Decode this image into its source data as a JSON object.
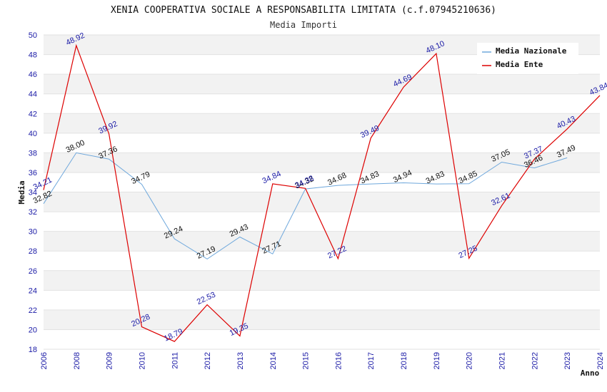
{
  "chart_data": {
    "type": "line",
    "title": "XENIA COOPERATIVA SOCIALE A RESPONSABILITA LIMITATA (c.f.07945210636)",
    "subtitle": "Media Importi",
    "xlabel": "Anno",
    "ylabel": "Media",
    "ylim": [
      18,
      50
    ],
    "yticks": [
      "18",
      "20",
      "22",
      "24",
      "26",
      "28",
      "30",
      "32",
      "34",
      "36",
      "38",
      "40",
      "42",
      "44",
      "46",
      "48",
      "50"
    ],
    "categories": [
      "2006",
      "2008",
      "2009",
      "2010",
      "2011",
      "2012",
      "2013",
      "2014",
      "2015",
      "2016",
      "2017",
      "2018",
      "2019",
      "2020",
      "2021",
      "2022",
      "2023",
      "2024"
    ],
    "legend_position": "top-right",
    "series": [
      {
        "name": "Media Nazionale",
        "color": "#6fa8dc",
        "values": [
          32.82,
          38.0,
          37.36,
          34.79,
          29.24,
          27.19,
          29.43,
          27.71,
          34.32,
          34.68,
          34.83,
          34.94,
          34.83,
          34.85,
          37.05,
          36.46,
          37.49,
          null
        ],
        "labels": [
          "32.82",
          "38.00",
          "37.36",
          "34.79",
          "29.24",
          "27.19",
          "29.43",
          "27.71",
          "34.32",
          "34.68",
          "34.83",
          "34.94",
          "34.83",
          "34.85",
          "37.05",
          "36.46",
          "37.49",
          ""
        ]
      },
      {
        "name": "Media Ente",
        "color": "#dd0000",
        "values": [
          34.21,
          48.92,
          39.92,
          20.28,
          18.79,
          22.53,
          19.35,
          34.84,
          34.38,
          27.22,
          39.49,
          44.69,
          48.1,
          27.25,
          32.61,
          37.37,
          40.43,
          43.84
        ],
        "labels": [
          "34.21",
          "48.92",
          "39.92",
          "20.28",
          "18.79",
          "22.53",
          "19.35",
          "34.84",
          "34.38",
          "27.22",
          "39.49",
          "44.69",
          "48.10",
          "27.25",
          "32.61",
          "37.37",
          "40.43",
          "43.84"
        ]
      }
    ]
  }
}
